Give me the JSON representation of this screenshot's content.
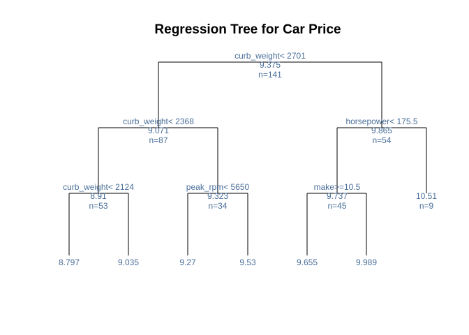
{
  "title": "Regression Tree for Car Price",
  "colors": {
    "label": "#4a6f9a",
    "line": "#000000",
    "title": "#000000"
  },
  "tree": {
    "split": "curb_weight< 2701",
    "value": "9.375",
    "n": "n=141",
    "left": {
      "split": "curb_weight< 2368",
      "value": "9.071",
      "n": "n=87",
      "left": {
        "split": "curb_weight< 2124",
        "value": "8.91",
        "n": "n=53",
        "left": {
          "value": "8.797"
        },
        "right": {
          "value": "9.035"
        }
      },
      "right": {
        "split": "peak_rpm< 5650",
        "value": "9.323",
        "n": "n=34",
        "left": {
          "value": "9.27"
        },
        "right": {
          "value": "9.53"
        }
      }
    },
    "right": {
      "split": "horsepower< 175.5",
      "value": "9.865",
      "n": "n=54",
      "left": {
        "split": "make>=10.5",
        "value": "9.737",
        "n": "n=45",
        "left": {
          "value": "9.655"
        },
        "right": {
          "value": "9.989"
        }
      },
      "right": {
        "value": "10.51",
        "n": "n=9"
      }
    }
  }
}
